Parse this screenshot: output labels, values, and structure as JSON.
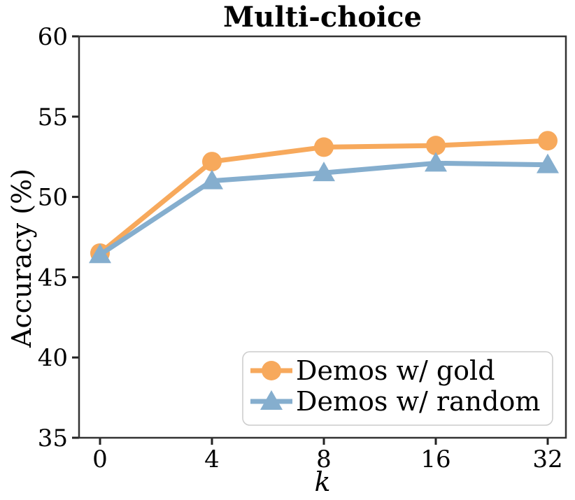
{
  "chart_data": {
    "type": "line",
    "title": "Multi-choice",
    "xlabel": "k",
    "ylabel": "Accuracy (%)",
    "categories": [
      "0",
      "4",
      "8",
      "16",
      "32"
    ],
    "yticks": [
      "35",
      "40",
      "45",
      "50",
      "55",
      "60"
    ],
    "ylim": [
      35,
      60
    ],
    "grid": false,
    "legend_position": "lower right",
    "series": [
      {
        "name": "Demos w/ gold",
        "marker": "circle",
        "color": "#F7A95C",
        "values": [
          46.5,
          52.2,
          53.1,
          53.2,
          53.5
        ]
      },
      {
        "name": "Demos w/ random",
        "marker": "triangle",
        "color": "#85AECE",
        "values": [
          46.4,
          51.0,
          51.5,
          52.1,
          52.0
        ]
      }
    ],
    "colors": {
      "spine": "#333333",
      "tick": "#222222",
      "text": "#000000",
      "legend_border": "#cccccc",
      "background": "#ffffff"
    }
  }
}
